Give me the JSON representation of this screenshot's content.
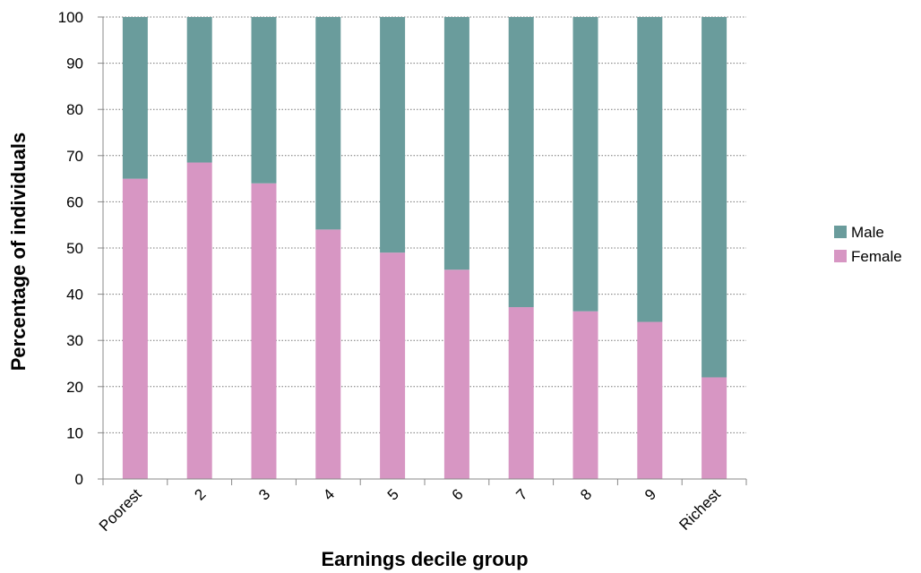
{
  "chart_data": {
    "type": "bar",
    "stacked": true,
    "categories": [
      "Poorest",
      "2",
      "3",
      "4",
      "5",
      "6",
      "7",
      "8",
      "9",
      "Richest"
    ],
    "series": [
      {
        "name": "Female",
        "color": "#d796c3",
        "values": [
          65,
          68.5,
          64,
          54,
          49,
          45.3,
          37.2,
          36.3,
          34,
          22
        ]
      },
      {
        "name": "Male",
        "color": "#6a9c9c",
        "values": [
          35,
          31.5,
          36,
          46,
          51,
          54.7,
          62.8,
          63.7,
          66,
          78
        ]
      }
    ],
    "title": "",
    "xlabel": "Earnings decile group",
    "ylabel": "Percentage of individuals",
    "ylim": [
      0,
      100
    ],
    "yticks": [
      0,
      10,
      20,
      30,
      40,
      50,
      60,
      70,
      80,
      90,
      100
    ],
    "grid": true,
    "legend_position": "right",
    "legend_order": [
      "Male",
      "Female"
    ]
  }
}
